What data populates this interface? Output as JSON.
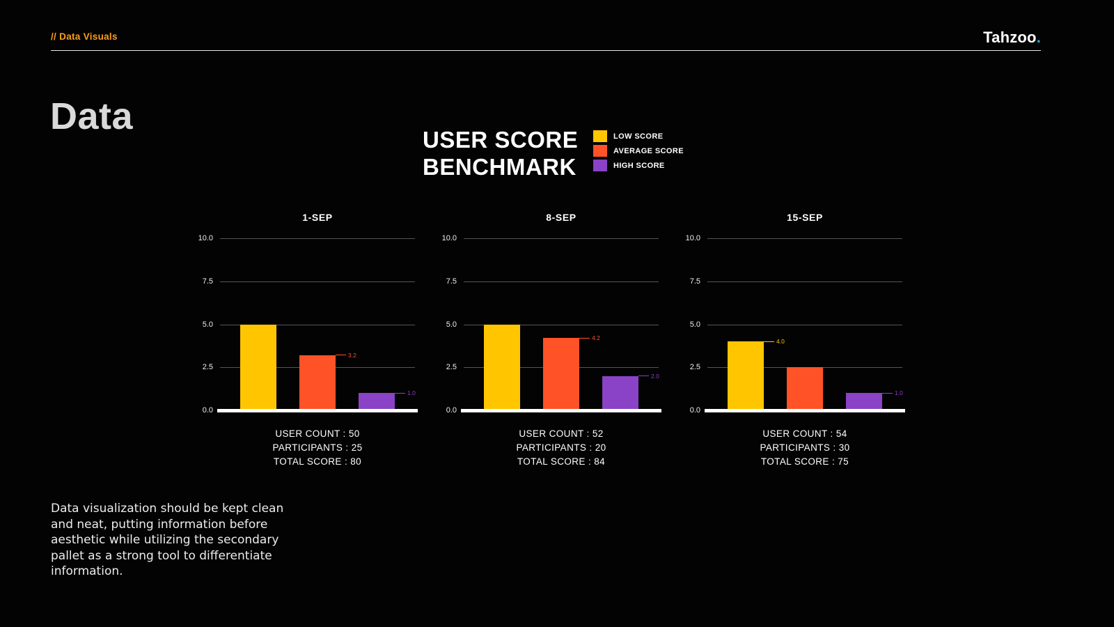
{
  "header": {
    "breadcrumb": "// Data Visuals",
    "logo": "Tahzoo",
    "logo_dot": "."
  },
  "page_title": "Data",
  "benchmark": {
    "title_line1": "USER SCORE",
    "title_line2": "BENCHMARK"
  },
  "legend": [
    {
      "label": "LOW SCORE",
      "color": "#FFC600"
    },
    {
      "label": "AVERAGE SCORE",
      "color": "#FF5227"
    },
    {
      "label": "HIGH SCORE",
      "color": "#8A42C6"
    }
  ],
  "colors": {
    "accent_orange": "#FF9E16",
    "logo_dot_blue": "#29ABE2",
    "low": "#FFC600",
    "average": "#FF5227",
    "high": "#8A42C6",
    "baseline": "#FFFFFF",
    "gridline": "#555555"
  },
  "chart_data": [
    {
      "type": "bar",
      "title": "1-SEP",
      "ylim": [
        0,
        10
      ],
      "yticks": [
        0,
        2.5,
        5,
        7.5,
        10
      ],
      "grid": true,
      "series": [
        {
          "name": "LOW SCORE",
          "value": 5.0,
          "label": null,
          "color": "#FFC600"
        },
        {
          "name": "AVERAGE SCORE",
          "value": 3.2,
          "label": "3.2",
          "color": "#FF5227"
        },
        {
          "name": "HIGH SCORE",
          "value": 1.0,
          "label": "1.0",
          "color": "#8A42C6"
        }
      ],
      "stats": [
        "USER COUNT : 50",
        "PARTICIPANTS : 25",
        "TOTAL SCORE : 80"
      ]
    },
    {
      "type": "bar",
      "title": "8-SEP",
      "ylim": [
        0,
        10
      ],
      "yticks": [
        0,
        2.5,
        5,
        7.5,
        10
      ],
      "grid": true,
      "series": [
        {
          "name": "LOW SCORE",
          "value": 5.0,
          "label": null,
          "color": "#FFC600"
        },
        {
          "name": "AVERAGE SCORE",
          "value": 4.2,
          "label": "4.2",
          "color": "#FF5227"
        },
        {
          "name": "HIGH SCORE",
          "value": 2.0,
          "label": "2.0",
          "color": "#8A42C6"
        }
      ],
      "stats": [
        "USER COUNT : 52",
        "PARTICIPANTS : 20",
        "TOTAL SCORE : 84"
      ]
    },
    {
      "type": "bar",
      "title": "15-SEP",
      "ylim": [
        0,
        10
      ],
      "yticks": [
        0,
        2.5,
        5,
        7.5,
        10
      ],
      "grid": true,
      "series": [
        {
          "name": "LOW SCORE",
          "value": 4.0,
          "label": "4.0",
          "color": "#FFC600"
        },
        {
          "name": "AVERAGE SCORE",
          "value": 2.5,
          "label": null,
          "color": "#FF5227"
        },
        {
          "name": "HIGH SCORE",
          "value": 1.0,
          "label": "1.0",
          "color": "#8A42C6"
        }
      ],
      "stats": [
        "USER COUNT : 54",
        "PARTICIPANTS : 30",
        "TOTAL SCORE : 75"
      ]
    }
  ],
  "footer_note": "Data visualization should be kept clean and neat, putting information before aesthetic while utilizing the secondary pallet as a strong tool to differentiate information."
}
